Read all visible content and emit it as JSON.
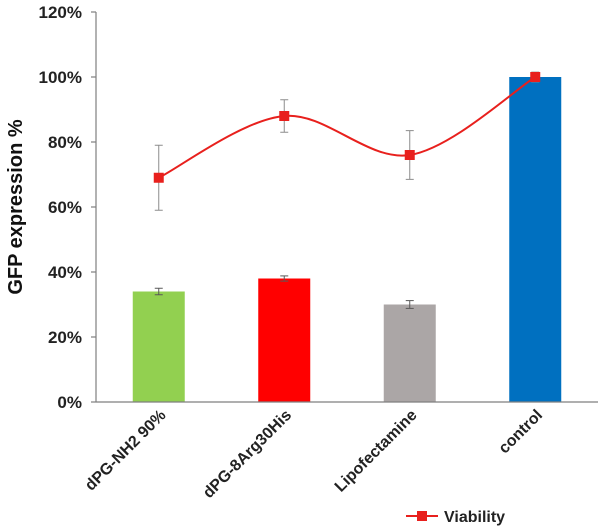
{
  "chart_data": {
    "type": "bar",
    "title": "",
    "xlabel": "",
    "ylabel": "GFP expression %",
    "ylim": [
      0,
      120
    ],
    "yticks": [
      0,
      20,
      40,
      60,
      80,
      100,
      120
    ],
    "ytick_labels": [
      "0%",
      "20%",
      "40%",
      "60%",
      "80%",
      "100%",
      "120%"
    ],
    "categories": [
      "dPG-NH2 90%",
      "dPG-8Arg30His",
      "Lipofectamine",
      "control"
    ],
    "series": [
      {
        "name": "GFP expression",
        "type": "bar",
        "values": [
          34,
          38,
          30,
          100
        ],
        "errors": [
          1.0,
          0.8,
          1.2,
          0
        ],
        "colors": [
          "#92d050",
          "#ff0000",
          "#aba6a6",
          "#0070c0"
        ]
      },
      {
        "name": "Viability",
        "type": "line",
        "smooth": true,
        "values": [
          69,
          88,
          76,
          100
        ],
        "errors": [
          10,
          5,
          7.5,
          1.5
        ],
        "color": "#e8201d"
      }
    ],
    "legend": {
      "position": "bottom-right",
      "entries": [
        "Viability"
      ]
    },
    "grid": false
  }
}
